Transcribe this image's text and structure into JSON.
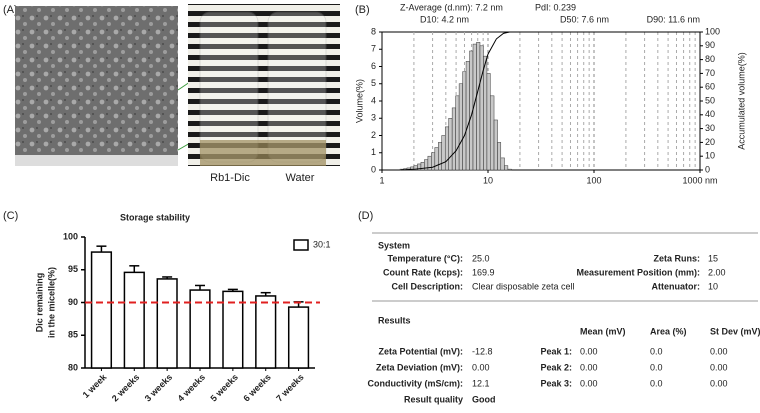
{
  "panel_a": {
    "label": "(A)",
    "captions": [
      "Rb1-Dic",
      "Water"
    ]
  },
  "panel_b": {
    "label": "(B)"
  },
  "panel_c": {
    "label": "(C)"
  },
  "panel_d": {
    "label": "(D)",
    "system": {
      "title": "System",
      "rows": [
        [
          [
            "Temperature (°C):",
            "25.0"
          ],
          [
            "Zeta Runs:",
            "15"
          ]
        ],
        [
          [
            "Count Rate (kcps):",
            "169.9"
          ],
          [
            "Measurement Position (mm):",
            "2.00"
          ]
        ],
        [
          [
            "Cell Description:",
            "Clear disposable zeta cell"
          ],
          [
            "Attenuator:",
            "10"
          ]
        ]
      ]
    },
    "results": {
      "title": "Results",
      "header": [
        "Mean (mV)",
        "Area (%)",
        "St Dev (mV)"
      ],
      "rows": [
        {
          "label": "Zeta Potential (mV):",
          "value": "-12.8",
          "peak": "Peak 1:",
          "cells": [
            "0.00",
            "0.0",
            "0.00"
          ]
        },
        {
          "label": "Zeta Deviation (mV):",
          "value": "0.00",
          "peak": "Peak 2:",
          "cells": [
            "0.00",
            "0.0",
            "0.00"
          ]
        },
        {
          "label": "Conductivity (mS/cm):",
          "value": "12.1",
          "peak": "Peak 3:",
          "cells": [
            "0.00",
            "0.0",
            "0.00"
          ]
        }
      ],
      "quality_label": "Result quality",
      "quality": "Good"
    }
  },
  "chart_data": [
    {
      "type": "histogram",
      "annotations": [
        "Z-Average (d.nm): 7.2 nm",
        "PdI: 0.239",
        "D10: 4.2 nm",
        "D50: 7.6 nm",
        "D90: 11.6 nm"
      ],
      "ylabel": "Volume(%)",
      "y2label": "Accumulated volume(%)",
      "bins": [
        1.48,
        1.6,
        1.72,
        1.86,
        2.0,
        2.16,
        2.33,
        2.51,
        2.71,
        2.92,
        3.15,
        3.4,
        3.66,
        3.95,
        4.26,
        4.59,
        4.95,
        5.34,
        5.76,
        6.21,
        6.7,
        7.22,
        7.79,
        8.4,
        9.06,
        9.77,
        10.5,
        11.4,
        12.3,
        13.2,
        14.3,
        15.4,
        16.6
      ],
      "values": [
        0.05,
        0.08,
        0.12,
        0.18,
        0.25,
        0.35,
        0.45,
        0.6,
        0.8,
        1.0,
        1.3,
        1.6,
        2.0,
        2.5,
        3.0,
        3.6,
        4.3,
        5.0,
        5.7,
        6.3,
        6.9,
        7.3,
        7.4,
        7.2,
        6.6,
        5.6,
        4.3,
        2.9,
        1.6,
        0.7,
        0.25,
        0.05
      ],
      "color": "#c8c8c8",
      "curve": {
        "x": [
          1.5,
          2,
          3,
          4,
          5,
          6,
          7,
          8,
          9,
          10,
          12,
          14,
          16,
          1000
        ],
        "values": [
          0,
          0.5,
          2,
          6,
          14,
          25,
          40,
          57,
          72,
          84,
          95,
          99,
          100,
          100
        ],
        "axis": "y2",
        "color": "#000000"
      },
      "xscale": "log",
      "xlim": [
        1,
        1000
      ],
      "xticks": [
        1,
        10,
        100,
        {
          "value": 1000,
          "label": "1000 nm"
        }
      ],
      "ylim": [
        0,
        8
      ],
      "yticks": [
        0,
        1,
        2,
        3,
        4,
        5,
        6,
        7,
        8
      ],
      "y2lim": [
        0,
        100
      ],
      "y2ticks": [
        0,
        10,
        20,
        30,
        40,
        50,
        60,
        70,
        80,
        90,
        100
      ],
      "tick_color": "#cc0000",
      "grid": true
    },
    {
      "type": "bar",
      "title": "Storage stability",
      "ylabel": [
        "Dic remaining",
        "in the micelle(%)"
      ],
      "categories": [
        "1 week",
        "2 weeks",
        "3 weeks",
        "4 weeks",
        "5 weeks",
        "6 weeks",
        "7 weeks"
      ],
      "series": [
        {
          "name": "30:1",
          "color": "#ffffff",
          "values": [
            97.7,
            94.6,
            93.6,
            91.9,
            91.7,
            91.0,
            89.3
          ],
          "errors": [
            0.9,
            1.0,
            0.3,
            0.7,
            0.3,
            0.5,
            0.8
          ]
        }
      ],
      "ylim": [
        80,
        100
      ],
      "yticks": [
        80,
        85,
        90,
        95,
        100
      ],
      "reference_line": {
        "value": 90,
        "color": "#e02020"
      },
      "legend": "top-right"
    }
  ]
}
